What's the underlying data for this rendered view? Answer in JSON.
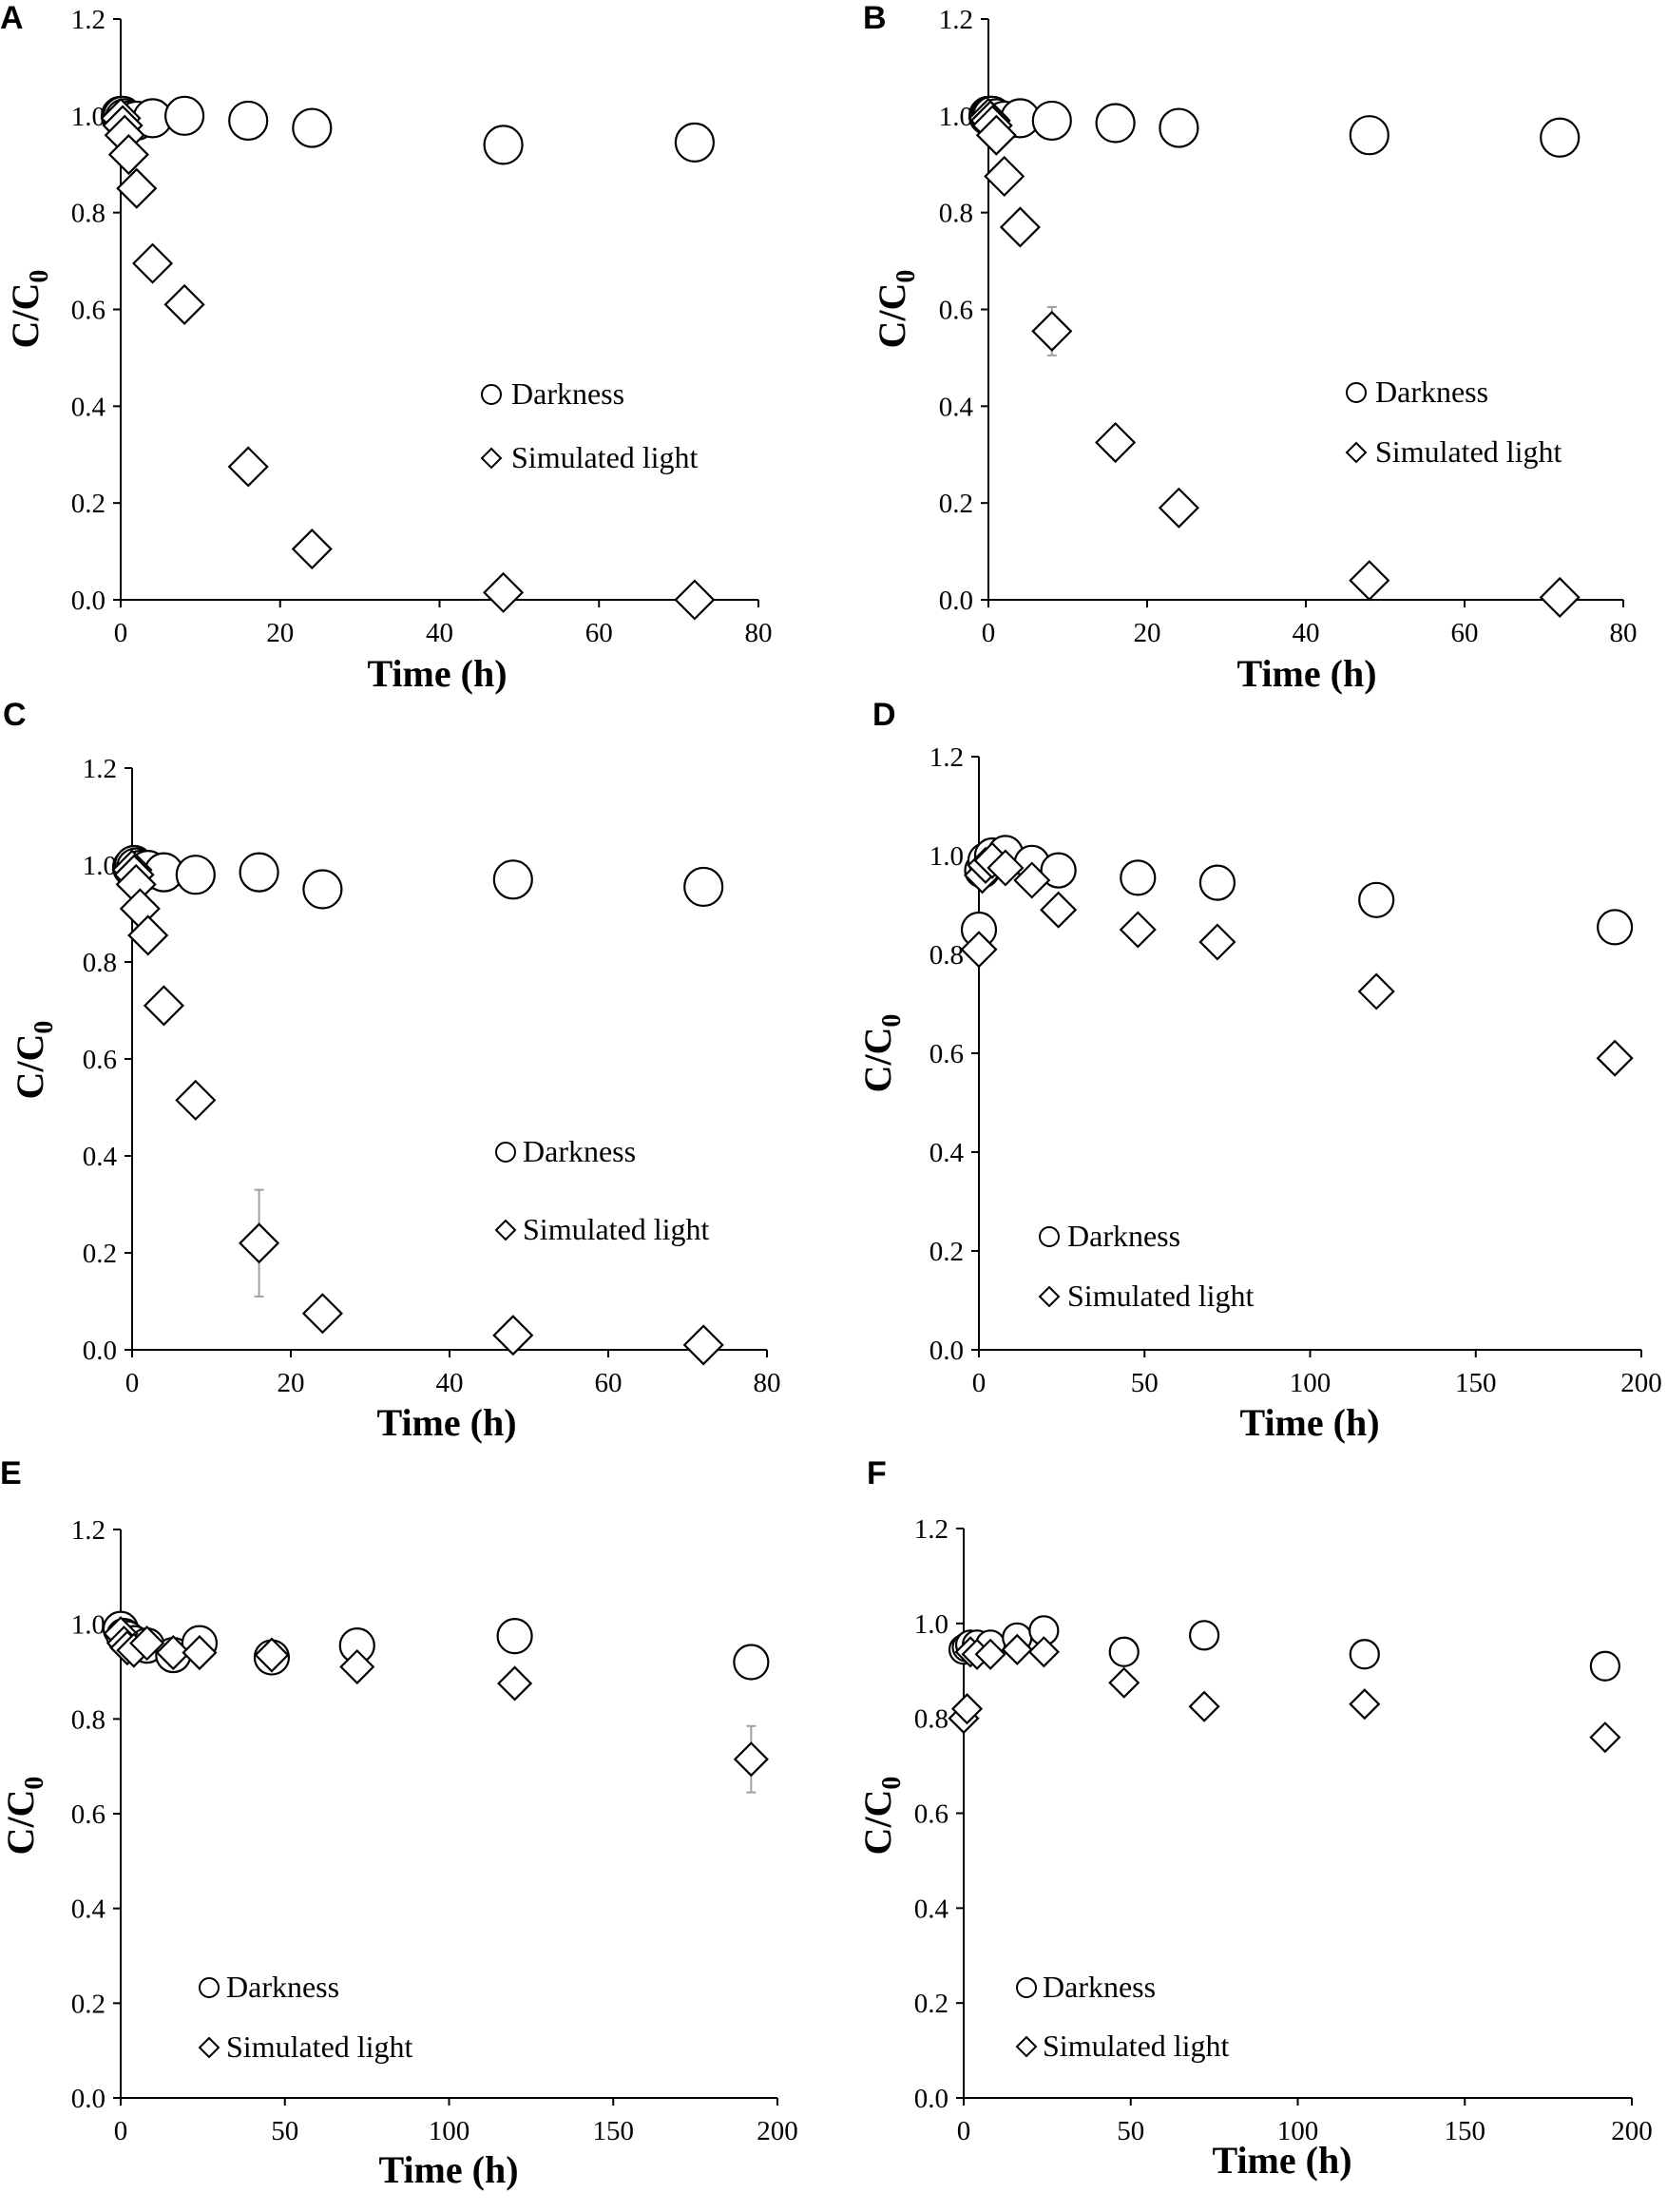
{
  "colors": {
    "marker_fill": "#ffffff",
    "marker_stroke": "#000000",
    "axis": "#000000",
    "error_bar": "#a0a0a0"
  },
  "chart_data": [
    {
      "panel": "A",
      "type": "scatter",
      "xlabel": "Time (h)",
      "ylabel": "C/C0",
      "xlim": [
        0,
        80
      ],
      "ylim": [
        0,
        1.2
      ],
      "xticks": [
        0,
        20,
        40,
        60,
        80
      ],
      "yticks": [
        0.0,
        0.2,
        0.4,
        0.6,
        0.8,
        1.0,
        1.2
      ],
      "legend_position": "center-right",
      "grid": false,
      "series": [
        {
          "name": "Darkness",
          "marker": "circle",
          "x": [
            0,
            0.25,
            0.5,
            1,
            2,
            4,
            8,
            16,
            24,
            48,
            72
          ],
          "y": [
            1.0,
            1.0,
            0.995,
            0.99,
            0.99,
            0.995,
            1.0,
            0.99,
            0.975,
            0.94,
            0.945
          ]
        },
        {
          "name": "Simulated light",
          "marker": "diamond",
          "x": [
            0,
            0.25,
            0.5,
            1,
            2,
            4,
            8,
            16,
            24,
            48,
            72
          ],
          "y": [
            0.995,
            0.98,
            0.96,
            0.92,
            0.85,
            0.695,
            0.61,
            0.275,
            0.105,
            0.015,
            0.0
          ]
        }
      ]
    },
    {
      "panel": "B",
      "type": "scatter",
      "xlabel": "Time (h)",
      "ylabel": "C/C0",
      "xlim": [
        0,
        80
      ],
      "ylim": [
        0,
        1.2
      ],
      "xticks": [
        0,
        20,
        40,
        60,
        80
      ],
      "yticks": [
        0.0,
        0.2,
        0.4,
        0.6,
        0.8,
        1.0,
        1.2
      ],
      "legend_position": "center-right",
      "grid": false,
      "series": [
        {
          "name": "Darkness",
          "marker": "circle",
          "x": [
            0,
            0.25,
            0.5,
            1,
            2,
            4,
            8,
            16,
            24,
            48,
            72
          ],
          "y": [
            1.0,
            1.0,
            1.0,
            0.995,
            0.99,
            0.995,
            0.99,
            0.985,
            0.975,
            0.96,
            0.955
          ]
        },
        {
          "name": "Simulated light",
          "marker": "diamond",
          "x": [
            0,
            0.25,
            0.5,
            1,
            2,
            4,
            8,
            16,
            24,
            48,
            72
          ],
          "y": [
            0.995,
            0.99,
            0.98,
            0.96,
            0.875,
            0.77,
            0.555,
            0.325,
            0.19,
            0.04,
            0.005
          ],
          "error": [
            0,
            0,
            0,
            0,
            0,
            0,
            0.05,
            0,
            0,
            0,
            0
          ]
        }
      ]
    },
    {
      "panel": "C",
      "type": "scatter",
      "xlabel": "Time (h)",
      "ylabel": "C/C0",
      "xlim": [
        0,
        80
      ],
      "ylim": [
        0,
        1.2
      ],
      "xticks": [
        0,
        20,
        40,
        60,
        80
      ],
      "yticks": [
        0.0,
        0.2,
        0.4,
        0.6,
        0.8,
        1.0,
        1.2
      ],
      "legend_position": "center-right",
      "grid": false,
      "series": [
        {
          "name": "Darkness",
          "marker": "circle",
          "x": [
            0,
            0.25,
            0.5,
            1,
            2,
            4,
            8,
            16,
            24,
            48,
            72
          ],
          "y": [
            0.995,
            1.0,
            0.995,
            0.99,
            0.99,
            0.985,
            0.98,
            0.985,
            0.95,
            0.97,
            0.955
          ]
        },
        {
          "name": "Simulated light",
          "marker": "diamond",
          "x": [
            0,
            0.25,
            0.5,
            1,
            2,
            4,
            8,
            16,
            24,
            48,
            72
          ],
          "y": [
            0.99,
            0.98,
            0.96,
            0.91,
            0.855,
            0.71,
            0.515,
            0.22,
            0.075,
            0.03,
            0.01
          ],
          "error": [
            0,
            0,
            0,
            0,
            0,
            0,
            0,
            0.11,
            0,
            0,
            0
          ]
        }
      ]
    },
    {
      "panel": "D",
      "type": "scatter",
      "xlabel": "Time (h)",
      "ylabel": "C/C0",
      "xlim": [
        0,
        200
      ],
      "ylim": [
        0,
        1.2
      ],
      "xticks": [
        0,
        50,
        100,
        150,
        200
      ],
      "yticks": [
        0.0,
        0.2,
        0.4,
        0.6,
        0.8,
        1.0,
        1.2
      ],
      "legend_position": "bottom-left",
      "grid": false,
      "series": [
        {
          "name": "Darkness",
          "marker": "circle",
          "x": [
            0,
            1,
            2,
            4,
            8,
            16,
            24,
            48,
            72,
            120,
            192
          ],
          "y": [
            0.85,
            0.97,
            0.99,
            1.0,
            1.005,
            0.985,
            0.97,
            0.955,
            0.945,
            0.91,
            0.855
          ]
        },
        {
          "name": "Simulated light",
          "marker": "diamond",
          "x": [
            0,
            1,
            2,
            4,
            8,
            16,
            24,
            48,
            72,
            120,
            192
          ],
          "y": [
            0.81,
            0.96,
            0.98,
            0.99,
            0.975,
            0.95,
            0.89,
            0.85,
            0.825,
            0.725,
            0.59
          ]
        }
      ]
    },
    {
      "panel": "E",
      "type": "scatter",
      "xlabel": "Time (h)",
      "ylabel": "C/C0",
      "xlim": [
        0,
        200
      ],
      "ylim": [
        0,
        1.2
      ],
      "xticks": [
        0,
        50,
        100,
        150,
        200
      ],
      "yticks": [
        0.0,
        0.2,
        0.4,
        0.6,
        0.8,
        1.0,
        1.2
      ],
      "legend_position": "bottom-left",
      "grid": false,
      "series": [
        {
          "name": "Darkness",
          "marker": "circle",
          "x": [
            0,
            1,
            2,
            4,
            8,
            16,
            24,
            46,
            72,
            120,
            192
          ],
          "y": [
            0.99,
            0.975,
            0.97,
            0.96,
            0.955,
            0.935,
            0.96,
            0.93,
            0.955,
            0.975,
            0.92
          ]
        },
        {
          "name": "Simulated light",
          "marker": "diamond",
          "x": [
            0,
            1,
            2,
            4,
            8,
            16,
            24,
            46,
            72,
            120,
            192
          ],
          "y": [
            0.98,
            0.96,
            0.95,
            0.945,
            0.96,
            0.94,
            0.94,
            0.935,
            0.91,
            0.875,
            0.715
          ],
          "error": [
            0,
            0,
            0,
            0,
            0,
            0,
            0,
            0,
            0,
            0,
            0.07
          ]
        }
      ]
    },
    {
      "panel": "F",
      "type": "scatter",
      "xlabel": "Time (h)",
      "ylabel": "C/C0",
      "xlim": [
        0,
        200
      ],
      "ylim": [
        0,
        1.2
      ],
      "xticks": [
        0,
        50,
        100,
        150,
        200
      ],
      "yticks": [
        0.0,
        0.2,
        0.4,
        0.6,
        0.8,
        1.0,
        1.2
      ],
      "legend_position": "bottom-left",
      "grid": false,
      "series": [
        {
          "name": "Darkness",
          "marker": "circle",
          "x": [
            0,
            1,
            2,
            4,
            8,
            16,
            24,
            48,
            72,
            120,
            192
          ],
          "y": [
            0.945,
            0.95,
            0.955,
            0.955,
            0.955,
            0.97,
            0.985,
            0.94,
            0.975,
            0.935,
            0.91
          ]
        },
        {
          "name": "Simulated light",
          "marker": "diamond",
          "x": [
            0,
            1,
            2,
            4,
            8,
            16,
            24,
            48,
            72,
            120,
            192
          ],
          "y": [
            0.8,
            0.82,
            0.94,
            0.935,
            0.935,
            0.945,
            0.94,
            0.875,
            0.825,
            0.83,
            0.76
          ]
        }
      ]
    }
  ]
}
